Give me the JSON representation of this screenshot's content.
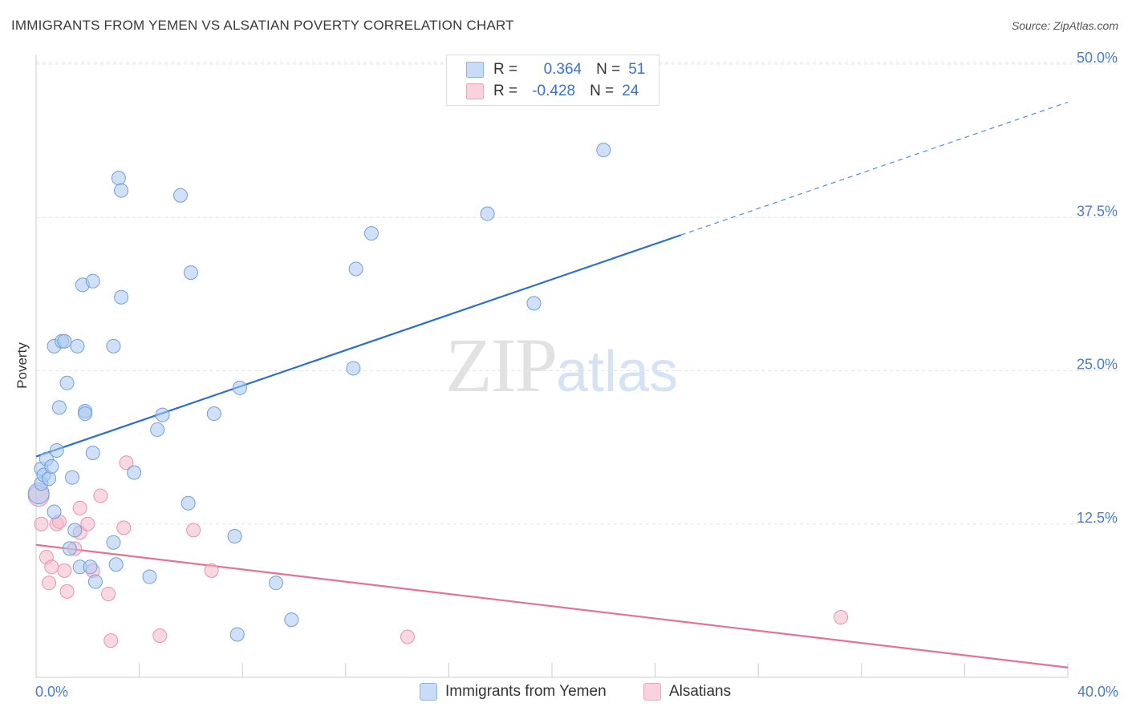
{
  "header": {
    "title": "IMMIGRANTS FROM YEMEN VS ALSATIAN POVERTY CORRELATION CHART",
    "source": "Source: ZipAtlas.com"
  },
  "watermark": {
    "zip": "ZIP",
    "atlas": "atlas"
  },
  "legend": {
    "rows": [
      {
        "r_label": "R =",
        "r_value": "0.364",
        "n_label": "N =",
        "n_value": "51",
        "color": "#aac8f0"
      },
      {
        "r_label": "R =",
        "r_value": "-0.428",
        "n_label": "N =",
        "n_value": "24",
        "color": "#f5b8cb"
      }
    ]
  },
  "chart_data": {
    "type": "scatter",
    "title": "IMMIGRANTS FROM YEMEN VS ALSATIAN POVERTY CORRELATION CHART",
    "xlabel": "",
    "ylabel": "Poverty",
    "xlim": [
      0,
      40
    ],
    "ylim": [
      0,
      50
    ],
    "x_tick_labels": [
      "0.0%",
      "40.0%"
    ],
    "y_ticks": [
      12.5,
      25.0,
      37.5,
      50.0
    ],
    "y_tick_labels": [
      "12.5%",
      "25.0%",
      "37.5%",
      "50.0%"
    ],
    "grid": true,
    "legend_position": "bottom",
    "series": [
      {
        "name": "Immigrants from Yemen",
        "color": "#aac8f0",
        "stroke": "#6f9fdc",
        "points": [
          [
            0.1,
            15.0
          ],
          [
            0.2,
            15.8
          ],
          [
            0.2,
            17.0
          ],
          [
            0.3,
            16.5
          ],
          [
            0.4,
            17.8
          ],
          [
            0.5,
            16.2
          ],
          [
            0.6,
            17.2
          ],
          [
            0.7,
            13.5
          ],
          [
            0.8,
            18.5
          ],
          [
            0.9,
            22.0
          ],
          [
            0.7,
            27.0
          ],
          [
            1.0,
            27.4
          ],
          [
            1.1,
            27.4
          ],
          [
            1.6,
            27.0
          ],
          [
            1.2,
            24.0
          ],
          [
            1.3,
            10.5
          ],
          [
            1.4,
            16.3
          ],
          [
            1.5,
            12.0
          ],
          [
            1.7,
            9.0
          ],
          [
            1.8,
            32.0
          ],
          [
            1.9,
            21.7
          ],
          [
            1.9,
            21.5
          ],
          [
            2.1,
            9.0
          ],
          [
            2.2,
            32.3
          ],
          [
            2.2,
            18.3
          ],
          [
            2.3,
            7.8
          ],
          [
            3.0,
            27.0
          ],
          [
            3.0,
            11.0
          ],
          [
            3.1,
            9.2
          ],
          [
            3.2,
            40.7
          ],
          [
            3.3,
            39.7
          ],
          [
            3.3,
            31.0
          ],
          [
            3.8,
            16.7
          ],
          [
            4.4,
            8.2
          ],
          [
            4.7,
            20.2
          ],
          [
            4.9,
            21.4
          ],
          [
            5.6,
            39.3
          ],
          [
            5.9,
            14.2
          ],
          [
            6.0,
            33.0
          ],
          [
            6.9,
            21.5
          ],
          [
            7.7,
            11.5
          ],
          [
            7.8,
            3.5
          ],
          [
            7.9,
            23.6
          ],
          [
            9.3,
            7.7
          ],
          [
            9.9,
            4.7
          ],
          [
            12.3,
            25.2
          ],
          [
            12.4,
            33.3
          ],
          [
            13.0,
            36.2
          ],
          [
            17.5,
            37.8
          ],
          [
            19.3,
            30.5
          ],
          [
            22.0,
            43.0
          ]
        ]
      },
      {
        "name": "Alsatians",
        "color": "#f5b8cb",
        "stroke": "#e992ad",
        "points": [
          [
            0.1,
            14.8
          ],
          [
            0.2,
            12.5
          ],
          [
            0.4,
            9.8
          ],
          [
            0.5,
            7.7
          ],
          [
            0.6,
            9.0
          ],
          [
            0.8,
            12.5
          ],
          [
            0.9,
            12.7
          ],
          [
            1.1,
            8.7
          ],
          [
            1.2,
            7.0
          ],
          [
            1.5,
            10.5
          ],
          [
            1.7,
            11.8
          ],
          [
            1.7,
            13.8
          ],
          [
            2.0,
            12.5
          ],
          [
            2.2,
            8.7
          ],
          [
            2.5,
            14.8
          ],
          [
            2.8,
            6.8
          ],
          [
            2.9,
            3.0
          ],
          [
            3.4,
            12.2
          ],
          [
            3.5,
            17.5
          ],
          [
            4.8,
            3.4
          ],
          [
            6.1,
            12.0
          ],
          [
            6.8,
            8.7
          ],
          [
            14.4,
            3.3
          ],
          [
            31.2,
            4.9
          ]
        ]
      }
    ],
    "trendlines": [
      {
        "series": "Immigrants from Yemen",
        "x_start": 0,
        "y_start": 18.0,
        "x_solid_end": 25,
        "x_end": 40,
        "y_end": 46.9,
        "color": "#2a6fce"
      },
      {
        "series": "Alsatians",
        "x_start": 0,
        "y_start": 10.8,
        "x_end": 40,
        "y_end": 0.8,
        "color": "#e5709a"
      }
    ]
  }
}
